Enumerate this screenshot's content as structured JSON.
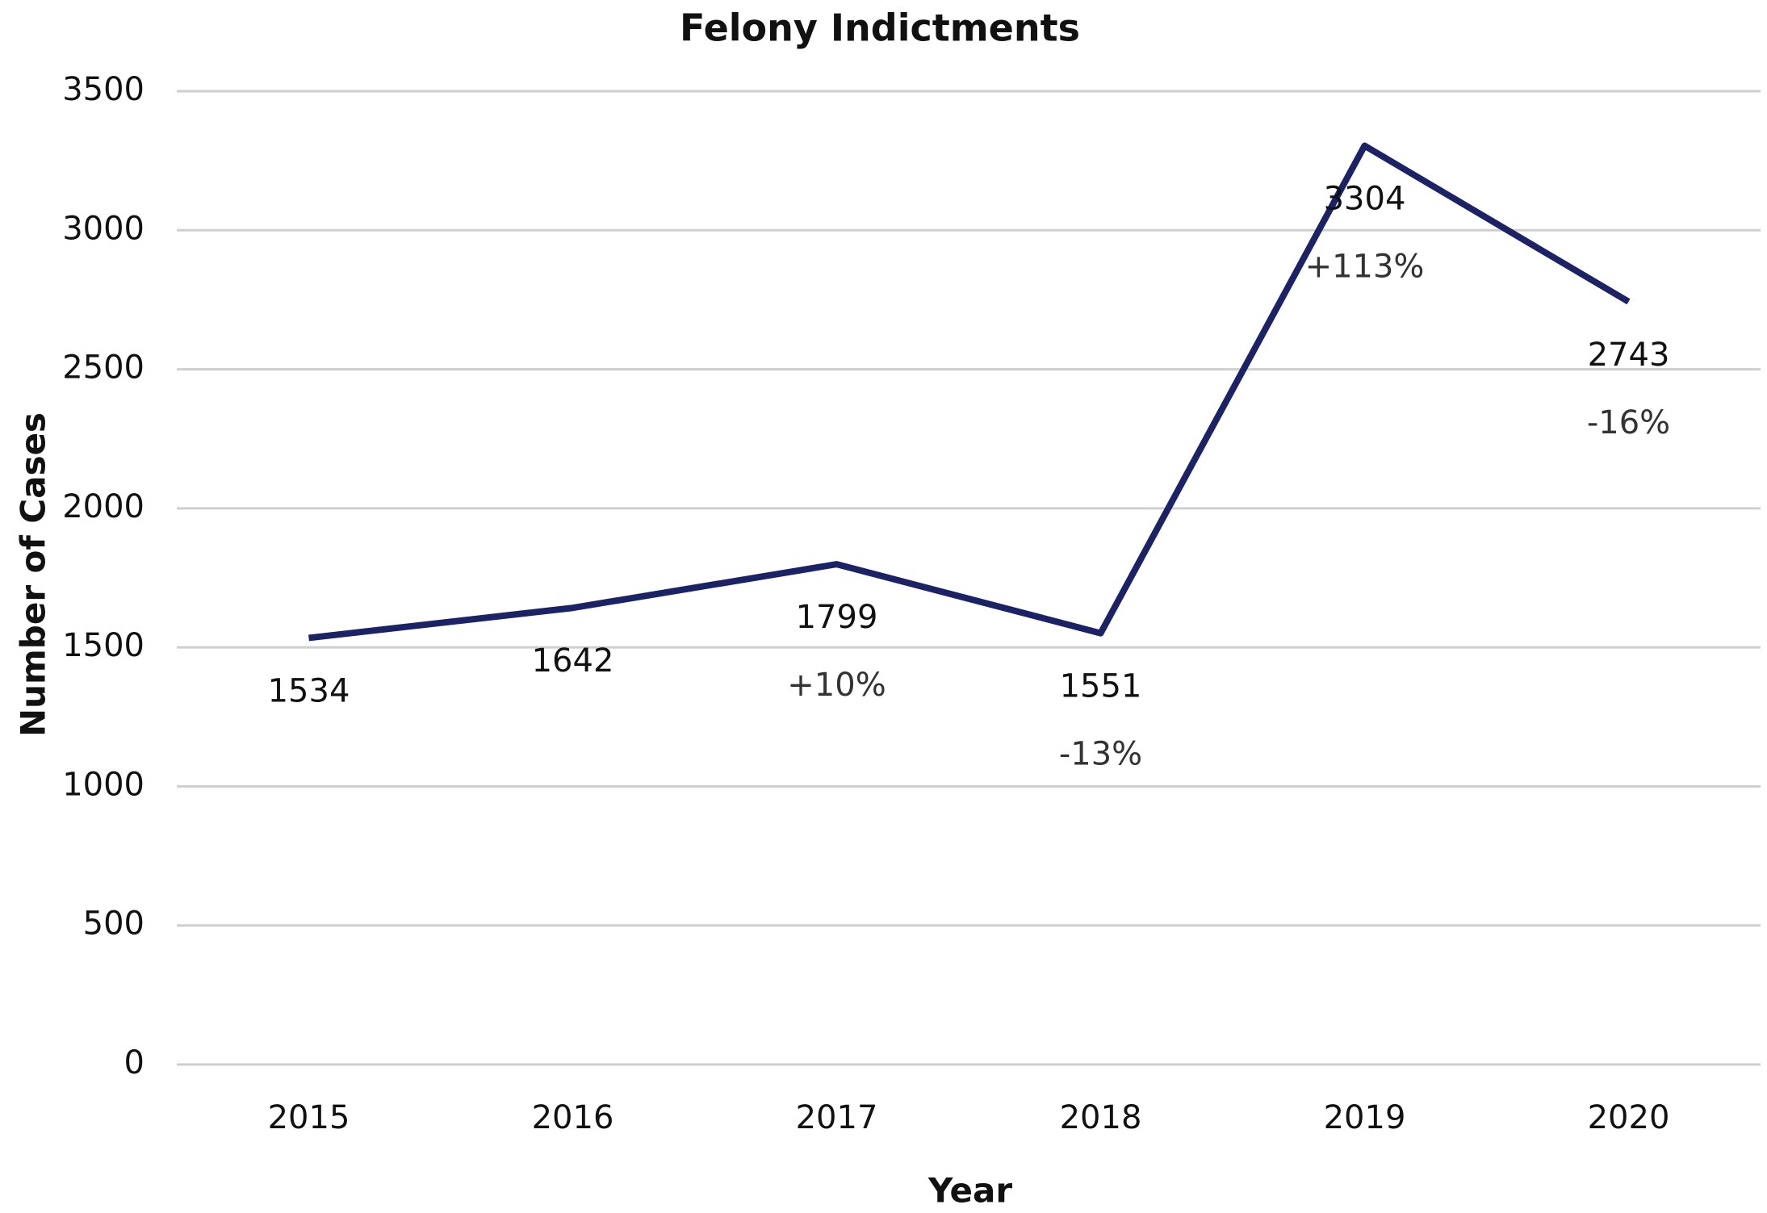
{
  "chart_data": {
    "type": "line",
    "title": "Felony Indictments",
    "x_label": "Year",
    "y_label": "Number of Cases",
    "categories": [
      "2015",
      "2016",
      "2017",
      "2018",
      "2019",
      "2020"
    ],
    "series": [
      {
        "name": "Felony Indictments",
        "color": "#1c2266",
        "values": [
          1534,
          1642,
          1799,
          1551,
          3304,
          2743
        ]
      }
    ],
    "change_labels": [
      null,
      null,
      "+10%",
      "-13%",
      "+113%",
      "-16%"
    ],
    "ylim": [
      0,
      3500
    ],
    "yticks": [
      0,
      500,
      1000,
      1500,
      2000,
      2500,
      3000,
      3500
    ],
    "grid": true
  }
}
